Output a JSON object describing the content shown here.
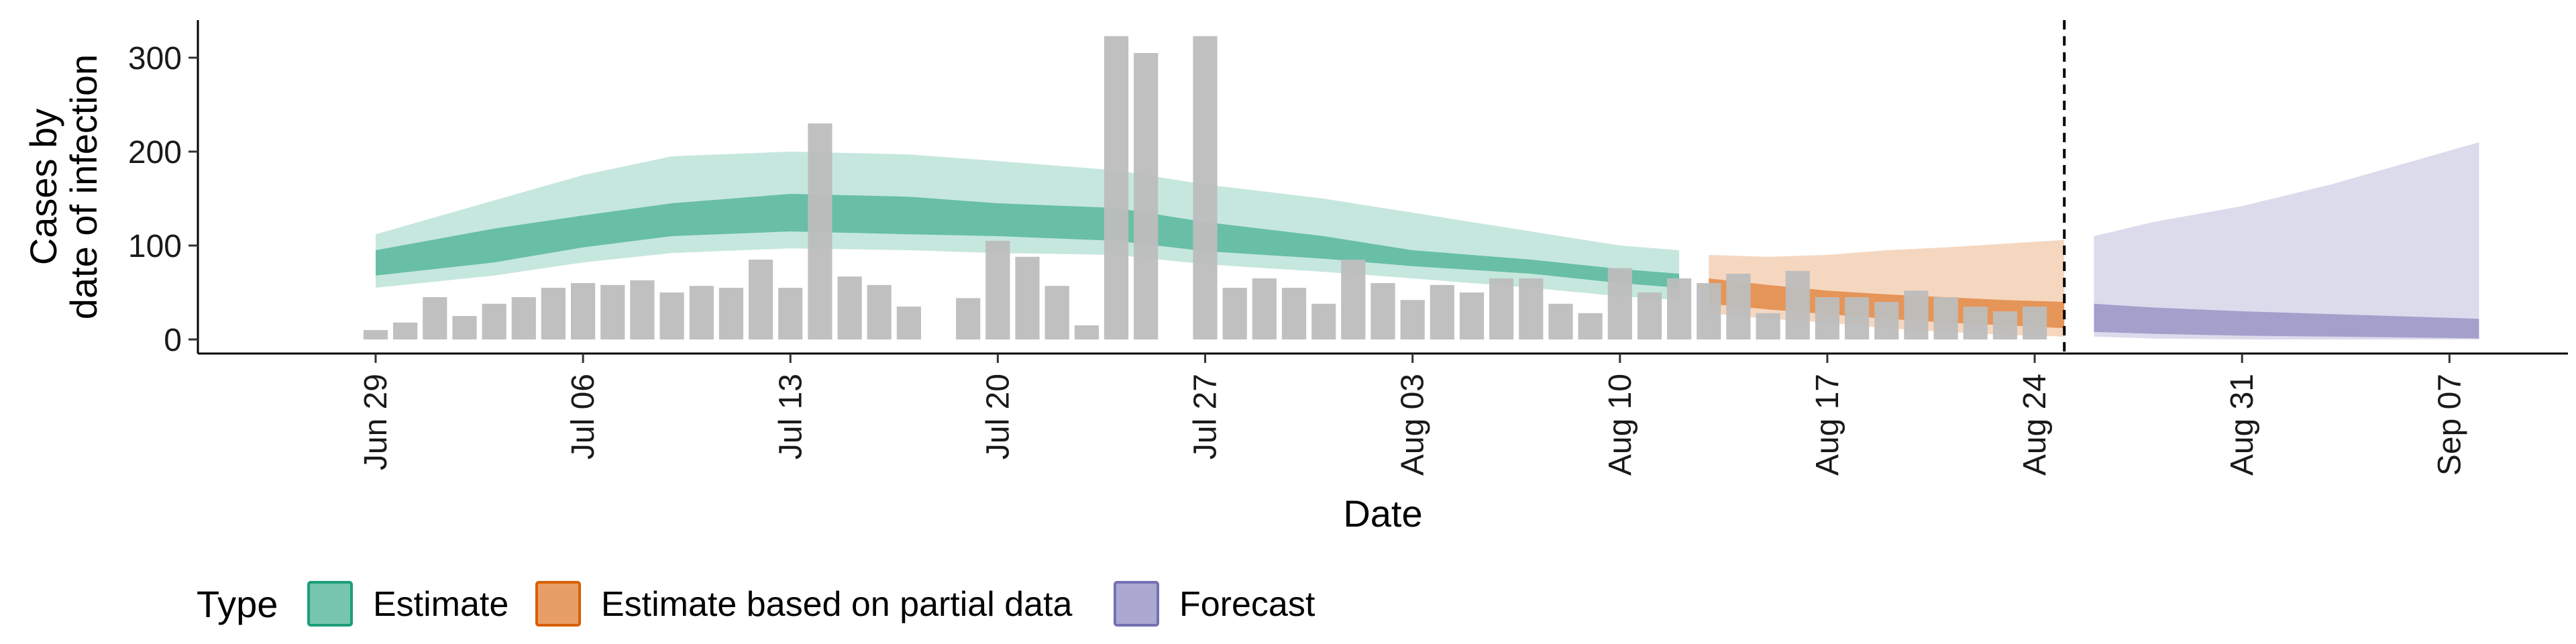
{
  "chart_data": {
    "type": "bar",
    "xlabel": "Date",
    "ylabel_lines": [
      "Cases by",
      "date of infection"
    ],
    "ylim": [
      -15,
      340
    ],
    "y_ticks": [
      0,
      100,
      200,
      300
    ],
    "x_range": [
      "2020-06-23",
      "2020-09-11"
    ],
    "x_ticks": [
      {
        "date": "2020-06-29",
        "label": "Jun 29"
      },
      {
        "date": "2020-07-06",
        "label": "Jul 06"
      },
      {
        "date": "2020-07-13",
        "label": "Jul 13"
      },
      {
        "date": "2020-07-20",
        "label": "Jul 20"
      },
      {
        "date": "2020-07-27",
        "label": "Jul 27"
      },
      {
        "date": "2020-08-03",
        "label": "Aug 03"
      },
      {
        "date": "2020-08-10",
        "label": "Aug 10"
      },
      {
        "date": "2020-08-17",
        "label": "Aug 17"
      },
      {
        "date": "2020-08-24",
        "label": "Aug 24"
      },
      {
        "date": "2020-08-31",
        "label": "Aug 31"
      },
      {
        "date": "2020-09-07",
        "label": "Sep 07"
      }
    ],
    "observed_cases": {
      "start_date": "2020-06-29",
      "color": "#bdbdbd",
      "values": [
        10,
        18,
        45,
        25,
        38,
        45,
        55,
        60,
        58,
        63,
        50,
        57,
        55,
        85,
        55,
        230,
        67,
        58,
        35,
        null,
        44,
        105,
        88,
        57,
        15,
        323,
        305,
        null,
        323,
        55,
        65,
        55,
        38,
        85,
        60,
        42,
        58,
        50,
        65,
        65,
        38,
        28,
        76,
        50,
        65,
        60,
        70,
        28,
        73,
        45,
        45,
        40,
        52,
        45,
        35,
        30,
        35
      ]
    },
    "vline_date": "2020-08-25",
    "series": [
      {
        "name": "Estimate",
        "color": "#1b9e77",
        "dates": [
          "2020-06-29",
          "2020-07-03",
          "2020-07-06",
          "2020-07-09",
          "2020-07-13",
          "2020-07-17",
          "2020-07-20",
          "2020-07-24",
          "2020-07-27",
          "2020-07-31",
          "2020-08-03",
          "2020-08-07",
          "2020-08-10",
          "2020-08-12"
        ],
        "inner_lower": [
          68,
          82,
          98,
          110,
          115,
          112,
          110,
          105,
          94,
          86,
          78,
          70,
          60,
          55
        ],
        "inner_upper": [
          95,
          118,
          132,
          145,
          155,
          152,
          145,
          140,
          125,
          110,
          95,
          85,
          75,
          70
        ],
        "outer_lower": [
          55,
          68,
          82,
          92,
          97,
          95,
          92,
          90,
          80,
          72,
          65,
          55,
          46,
          42
        ],
        "outer_upper": [
          112,
          148,
          175,
          195,
          200,
          197,
          190,
          180,
          165,
          150,
          135,
          115,
          100,
          95
        ]
      },
      {
        "name": "Estimate based on partial data",
        "color": "#d95f02",
        "dates": [
          "2020-08-13",
          "2020-08-15",
          "2020-08-17",
          "2020-08-19",
          "2020-08-21",
          "2020-08-23",
          "2020-08-25"
        ],
        "inner_lower": [
          38,
          32,
          27,
          22,
          18,
          15,
          12
        ],
        "inner_upper": [
          65,
          58,
          52,
          48,
          45,
          42,
          40
        ],
        "outer_lower": [
          28,
          22,
          18,
          12,
          8,
          5,
          3
        ],
        "outer_upper": [
          90,
          88,
          90,
          95,
          98,
          102,
          106
        ]
      },
      {
        "name": "Forecast",
        "color": "#7570b3",
        "dates": [
          "2020-08-26",
          "2020-08-28",
          "2020-08-31",
          "2020-09-03",
          "2020-09-06",
          "2020-09-08"
        ],
        "inner_lower": [
          8,
          6,
          4,
          3,
          2,
          1
        ],
        "inner_upper": [
          38,
          34,
          30,
          27,
          24,
          22
        ],
        "outer_lower": [
          3,
          1,
          0,
          0,
          0,
          0
        ],
        "outer_upper": [
          110,
          125,
          142,
          165,
          192,
          210
        ]
      }
    ],
    "legend": {
      "title": "Type",
      "position": "bottom-left",
      "entries": [
        {
          "label": "Estimate",
          "color": "#1b9e77"
        },
        {
          "label": "Estimate based on partial data",
          "color": "#d95f02"
        },
        {
          "label": "Forecast",
          "color": "#7570b3"
        }
      ]
    },
    "grid": false
  }
}
